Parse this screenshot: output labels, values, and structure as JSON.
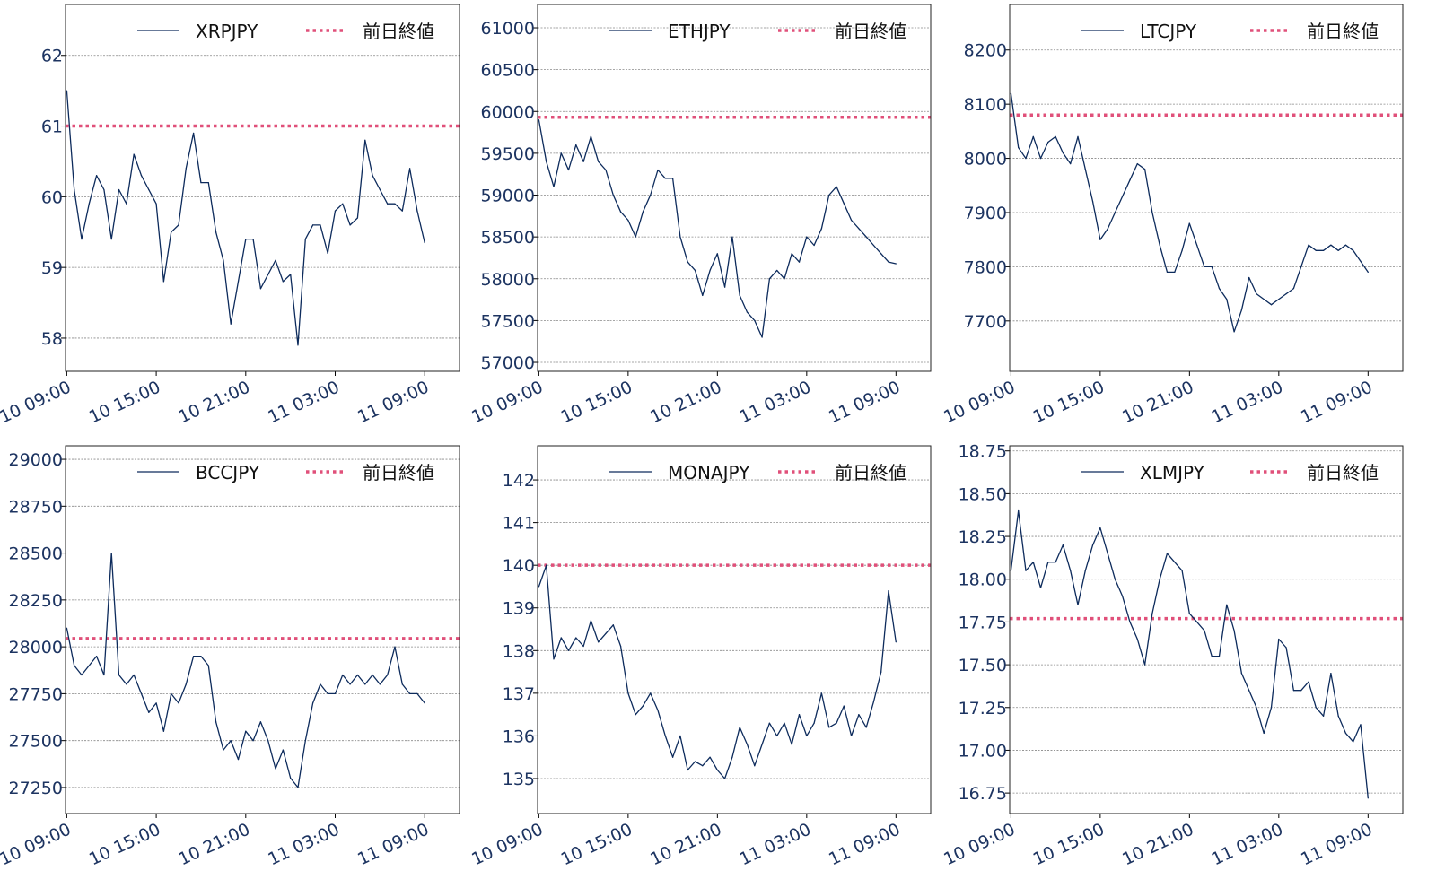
{
  "colors": {
    "series": "#0d2b5c",
    "prev_close": "#e0507a",
    "tick_text": "#1d3461",
    "grid": "#888888"
  },
  "times": [
    "10 09:00",
    "10 09:30",
    "10 10:00",
    "10 10:30",
    "10 11:00",
    "10 11:30",
    "10 12:00",
    "10 12:30",
    "10 13:00",
    "10 13:30",
    "10 14:00",
    "10 14:30",
    "10 15:00",
    "10 15:30",
    "10 16:00",
    "10 16:30",
    "10 17:00",
    "10 17:30",
    "10 18:00",
    "10 18:30",
    "10 19:00",
    "10 19:30",
    "10 20:00",
    "10 20:30",
    "10 21:00",
    "10 21:30",
    "10 22:00",
    "10 22:30",
    "10 23:00",
    "10 23:30",
    "11 00:00",
    "11 00:30",
    "11 01:00",
    "11 01:30",
    "11 02:00",
    "11 02:30",
    "11 03:00",
    "11 03:30",
    "11 04:00",
    "11 04:30",
    "11 05:00",
    "11 05:30",
    "11 06:00",
    "11 06:30",
    "11 07:00",
    "11 07:30",
    "11 08:00",
    "11 08:30",
    "11 09:00"
  ],
  "chart_data": [
    {
      "type": "line",
      "series_name": "XRPJPY",
      "prev_close_label": "前日終値",
      "prev_close": 61.0,
      "xlim": [
        "10 08:55",
        "11 11:20"
      ],
      "xticks": [
        "10 09:00",
        "10 15:00",
        "10 21:00",
        "11 03:00",
        "11 09:00"
      ],
      "ylim": [
        57.53,
        62.72
      ],
      "yticks": [
        "58",
        "59",
        "60",
        "61",
        "62"
      ],
      "grid": true,
      "legend": "top",
      "values": [
        61.5,
        60.1,
        59.4,
        59.9,
        60.3,
        60.1,
        59.4,
        60.1,
        59.9,
        60.6,
        60.3,
        60.1,
        59.9,
        58.8,
        59.5,
        59.6,
        60.4,
        60.9,
        60.2,
        60.2,
        59.5,
        59.1,
        58.2,
        58.8,
        59.4,
        59.4,
        58.7,
        58.9,
        59.1,
        58.8,
        58.9,
        57.9,
        59.4,
        59.6,
        59.6,
        59.2,
        59.8,
        59.9,
        59.6,
        59.7,
        60.8,
        60.3,
        60.1,
        59.9,
        59.9,
        59.8,
        60.4,
        59.8,
        59.35
      ]
    },
    {
      "type": "line",
      "series_name": "ETHJPY",
      "prev_close_label": "前日終値",
      "prev_close": 59930,
      "xlim": [
        "10 08:55",
        "11 11:20"
      ],
      "xticks": [
        "10 09:00",
        "10 15:00",
        "10 21:00",
        "11 03:00",
        "11 09:00"
      ],
      "ylim": [
        56893,
        61279
      ],
      "yticks": [
        "57000",
        "57500",
        "58000",
        "58500",
        "59000",
        "59500",
        "60000",
        "60500",
        "61000"
      ],
      "grid": true,
      "legend": "top",
      "values": [
        59900,
        59400,
        59100,
        59500,
        59300,
        59600,
        59400,
        59700,
        59400,
        59300,
        59000,
        58800,
        58700,
        58500,
        58800,
        59000,
        59300,
        59200,
        59200,
        58500,
        58200,
        58100,
        57800,
        58100,
        58300,
        57900,
        58500,
        57800,
        57600,
        57500,
        57300,
        58000,
        58100,
        58000,
        58300,
        58200,
        58500,
        58400,
        58600,
        59000,
        59100,
        58900,
        58700,
        58600,
        58500,
        58400,
        58300,
        58200,
        58180
      ]
    },
    {
      "type": "line",
      "series_name": "LTCJPY",
      "prev_close_label": "前日終値",
      "prev_close": 8080,
      "xlim": [
        "10 08:55",
        "11 11:20"
      ],
      "xticks": [
        "10 09:00",
        "10 15:00",
        "10 21:00",
        "11 03:00",
        "11 09:00"
      ],
      "ylim": [
        7607,
        8284
      ],
      "yticks": [
        "7700",
        "7800",
        "7900",
        "8000",
        "8100",
        "8200"
      ],
      "grid": true,
      "legend": "top",
      "values": [
        8120,
        8020,
        8000,
        8040,
        8000,
        8030,
        8040,
        8010,
        7990,
        8040,
        7980,
        7920,
        7850,
        7870,
        7900,
        7930,
        7960,
        7990,
        7980,
        7900,
        7840,
        7790,
        7790,
        7830,
        7880,
        7840,
        7800,
        7800,
        7760,
        7740,
        7680,
        7720,
        7780,
        7750,
        7740,
        7730,
        7740,
        7750,
        7760,
        7800,
        7840,
        7830,
        7830,
        7840,
        7830,
        7840,
        7830,
        7810,
        7790
      ]
    },
    {
      "type": "line",
      "series_name": "BCCJPY",
      "prev_close_label": "前日終値",
      "prev_close": 28044,
      "xlim": [
        "10 08:55",
        "11 11:20"
      ],
      "xticks": [
        "10 09:00",
        "10 15:00",
        "10 21:00",
        "11 03:00",
        "11 09:00"
      ],
      "ylim": [
        27111,
        29072
      ],
      "yticks": [
        "27250",
        "27500",
        "27750",
        "28000",
        "28250",
        "28500",
        "28750",
        "29000"
      ],
      "grid": true,
      "legend": "top",
      "values": [
        28100,
        27900,
        27850,
        27900,
        27950,
        27850,
        28500,
        27850,
        27800,
        27850,
        27750,
        27650,
        27700,
        27550,
        27750,
        27700,
        27800,
        27950,
        27950,
        27900,
        27600,
        27450,
        27500,
        27400,
        27550,
        27500,
        27600,
        27500,
        27350,
        27450,
        27300,
        27250,
        27500,
        27700,
        27800,
        27750,
        27750,
        27850,
        27800,
        27850,
        27800,
        27850,
        27800,
        27850,
        28000,
        27800,
        27750,
        27750,
        27700
      ]
    },
    {
      "type": "line",
      "series_name": "MONAJPY",
      "prev_close_label": "前日終値",
      "prev_close": 140.0,
      "xlim": [
        "10 08:55",
        "11 11:20"
      ],
      "xticks": [
        "10 09:00",
        "10 15:00",
        "10 21:00",
        "11 03:00",
        "11 09:00"
      ],
      "ylim": [
        134.18,
        142.8
      ],
      "yticks": [
        "135",
        "136",
        "137",
        "138",
        "139",
        "140",
        "141",
        "142"
      ],
      "grid": true,
      "legend": "top",
      "values": [
        139.5,
        140.0,
        137.8,
        138.3,
        138.0,
        138.3,
        138.1,
        138.7,
        138.2,
        138.4,
        138.6,
        138.1,
        137.0,
        136.5,
        136.7,
        137.0,
        136.6,
        136.0,
        135.5,
        136.0,
        135.2,
        135.4,
        135.3,
        135.5,
        135.2,
        135.0,
        135.5,
        136.2,
        135.8,
        135.3,
        135.8,
        136.3,
        136.0,
        136.3,
        135.8,
        136.5,
        136.0,
        136.3,
        137.0,
        136.2,
        136.3,
        136.7,
        136.0,
        136.5,
        136.2,
        136.8,
        137.5,
        139.4,
        138.2
      ]
    },
    {
      "type": "line",
      "series_name": "XLMJPY",
      "prev_close_label": "前日終値",
      "prev_close": 17.77,
      "xlim": [
        "10 08:55",
        "11 11:20"
      ],
      "xticks": [
        "10 09:00",
        "10 15:00",
        "10 21:00",
        "11 03:00",
        "11 09:00"
      ],
      "ylim": [
        16.63,
        18.78
      ],
      "yticks": [
        "16.75",
        "17.00",
        "17.25",
        "17.50",
        "17.75",
        "18.00",
        "18.25",
        "18.50",
        "18.75"
      ],
      "grid": true,
      "legend": "top",
      "values": [
        18.05,
        18.4,
        18.05,
        18.1,
        17.95,
        18.1,
        18.1,
        18.2,
        18.05,
        17.85,
        18.05,
        18.2,
        18.3,
        18.15,
        18.0,
        17.9,
        17.75,
        17.65,
        17.5,
        17.8,
        18.0,
        18.15,
        18.1,
        18.05,
        17.8,
        17.75,
        17.7,
        17.55,
        17.55,
        17.85,
        17.7,
        17.45,
        17.35,
        17.25,
        17.1,
        17.25,
        17.65,
        17.6,
        17.35,
        17.35,
        17.4,
        17.25,
        17.2,
        17.45,
        17.2,
        17.1,
        17.05,
        17.15,
        16.72
      ]
    }
  ]
}
